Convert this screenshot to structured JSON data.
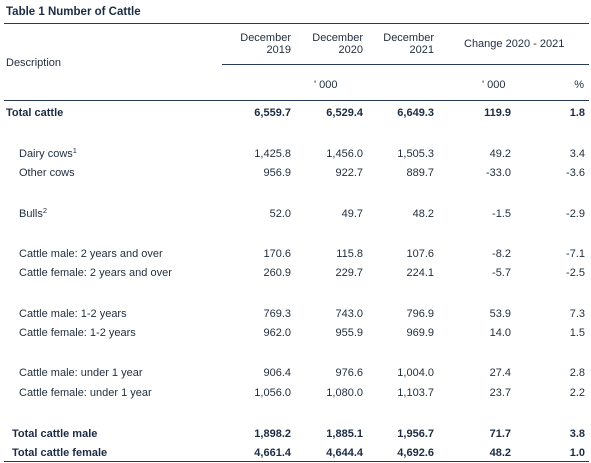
{
  "title": "Table 1 Number of Cattle",
  "header": {
    "description": "Description",
    "col_2019": [
      "December",
      "2019"
    ],
    "col_2020": [
      "December",
      "2020"
    ],
    "col_2021": [
      "December",
      "2021"
    ],
    "change": "Change 2020 - 2021",
    "unit_levels": "' 000",
    "unit_change": "' 000",
    "unit_pct": "%"
  },
  "rows": [
    {
      "label": "Total cattle",
      "sup": "",
      "v2019": "6,559.7",
      "v2020": "6,529.4",
      "v2021": "6,649.3",
      "change": "119.9",
      "pct": "1.8",
      "bold": true
    },
    {
      "label": "Dairy cows",
      "sup": "1",
      "v2019": "1,425.8",
      "v2020": "1,456.0",
      "v2021": "1,505.3",
      "change": "49.2",
      "pct": "3.4",
      "bold": false
    },
    {
      "label": "Other cows",
      "sup": "",
      "v2019": "956.9",
      "v2020": "922.7",
      "v2021": "889.7",
      "change": "-33.0",
      "pct": "-3.6",
      "bold": false
    },
    {
      "label": "Bulls",
      "sup": "2",
      "v2019": "52.0",
      "v2020": "49.7",
      "v2021": "48.2",
      "change": "-1.5",
      "pct": "-2.9",
      "bold": false
    },
    {
      "label": "Cattle male:  2 years and over",
      "sup": "",
      "v2019": "170.6",
      "v2020": "115.8",
      "v2021": "107.6",
      "change": "-8.2",
      "pct": "-7.1",
      "bold": false
    },
    {
      "label": "Cattle female:  2 years and over",
      "sup": "",
      "v2019": "260.9",
      "v2020": "229.7",
      "v2021": "224.1",
      "change": "-5.7",
      "pct": "-2.5",
      "bold": false
    },
    {
      "label": "Cattle male:  1-2 years",
      "sup": "",
      "v2019": "769.3",
      "v2020": "743.0",
      "v2021": "796.9",
      "change": "53.9",
      "pct": "7.3",
      "bold": false
    },
    {
      "label": "Cattle female:  1-2 years",
      "sup": "",
      "v2019": "962.0",
      "v2020": "955.9",
      "v2021": "969.9",
      "change": "14.0",
      "pct": "1.5",
      "bold": false
    },
    {
      "label": "Cattle male:  under 1 year",
      "sup": "",
      "v2019": "906.4",
      "v2020": "976.6",
      "v2021": "1,004.0",
      "change": "27.4",
      "pct": "2.8",
      "bold": false
    },
    {
      "label": "Cattle female:  under 1 year",
      "sup": "",
      "v2019": "1,056.0",
      "v2020": "1,080.0",
      "v2021": "1,103.7",
      "change": "23.7",
      "pct": "2.2",
      "bold": false
    },
    {
      "label": "Total cattle male",
      "sup": "",
      "v2019": "1,898.2",
      "v2020": "1,885.1",
      "v2021": "1,956.7",
      "change": "71.7",
      "pct": "3.8",
      "bold": true
    },
    {
      "label": "Total cattle female",
      "sup": "",
      "v2019": "4,661.4",
      "v2020": "4,644.4",
      "v2021": "4,692.6",
      "change": "48.2",
      "pct": "1.0",
      "bold": true
    }
  ]
}
